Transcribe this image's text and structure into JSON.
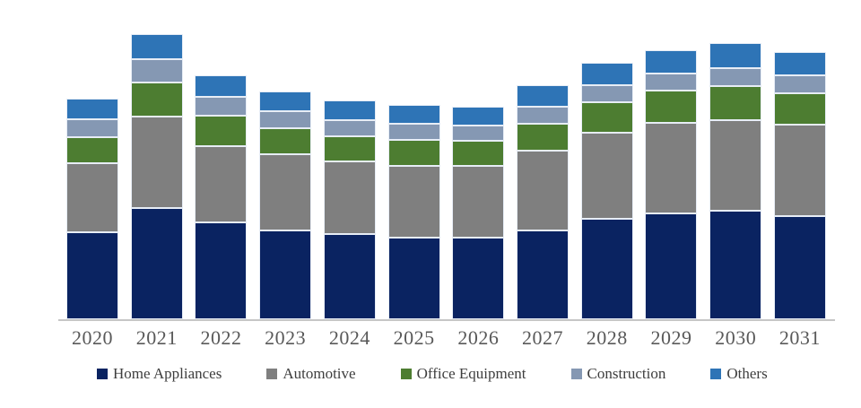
{
  "page": {
    "background": "#ffffff"
  },
  "chart_data": {
    "type": "bar",
    "stacked": true,
    "title": "",
    "xlabel": "",
    "ylabel": "",
    "y_axis_visible": false,
    "grid": false,
    "legend_position": "bottom",
    "value_units": "pixel-proportional heights (chart displays no numeric y-axis)",
    "categories": [
      "2020",
      "2021",
      "2022",
      "2023",
      "2024",
      "2025",
      "2026",
      "2027",
      "2028",
      "2029",
      "2030",
      "2031"
    ],
    "series": [
      {
        "name": "Home Appliances",
        "color": "#0a2361",
        "values": [
          97,
          124,
          108,
          99,
          95,
          91,
          91,
          99,
          112,
          118,
          121,
          115
        ]
      },
      {
        "name": "Automotive",
        "color": "#7f7f7f",
        "values": [
          77,
          102,
          85,
          85,
          81,
          80,
          80,
          89,
          96,
          101,
          101,
          102
        ]
      },
      {
        "name": "Office Equipment",
        "color": "#4d7d31",
        "values": [
          29,
          38,
          34,
          29,
          28,
          29,
          28,
          30,
          34,
          36,
          38,
          35
        ]
      },
      {
        "name": "Construction",
        "color": "#8598b3",
        "values": [
          20,
          26,
          21,
          19,
          18,
          18,
          17,
          19,
          19,
          19,
          20,
          20
        ]
      },
      {
        "name": "Others",
        "color": "#2e74b6",
        "values": [
          23,
          28,
          24,
          22,
          22,
          21,
          21,
          24,
          25,
          26,
          28,
          26
        ]
      }
    ],
    "axis": {
      "tick_color": "#595959",
      "line_color": "#c6c6c6"
    }
  }
}
